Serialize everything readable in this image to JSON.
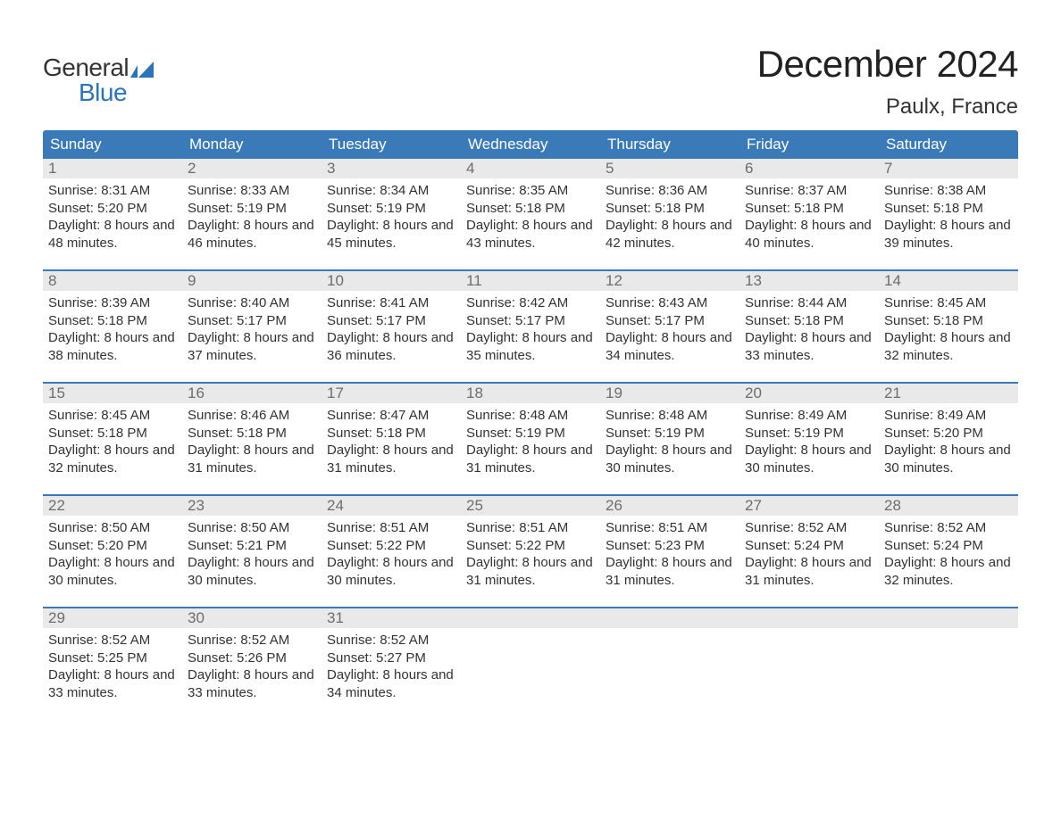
{
  "logo": {
    "line1": "General",
    "line2": "Blue",
    "flag_color": "#2b74b8"
  },
  "title": "December 2024",
  "location": "Paulx, France",
  "colors": {
    "header_bg": "#3a7ab8",
    "header_text": "#ffffff",
    "daynum_bg": "#e9e9e9",
    "daynum_text": "#6d6d6d",
    "body_text": "#333333",
    "rule": "#3a7ab8",
    "page_bg": "#ffffff"
  },
  "typography": {
    "title_fontsize": 42,
    "location_fontsize": 24,
    "header_fontsize": 17,
    "daynum_fontsize": 17,
    "body_fontsize": 15
  },
  "weekday_headers": [
    "Sunday",
    "Monday",
    "Tuesday",
    "Wednesday",
    "Thursday",
    "Friday",
    "Saturday"
  ],
  "weeks": [
    [
      {
        "n": "1",
        "sunrise": "8:31 AM",
        "sunset": "5:20 PM",
        "daylight": "8 hours and 48 minutes."
      },
      {
        "n": "2",
        "sunrise": "8:33 AM",
        "sunset": "5:19 PM",
        "daylight": "8 hours and 46 minutes."
      },
      {
        "n": "3",
        "sunrise": "8:34 AM",
        "sunset": "5:19 PM",
        "daylight": "8 hours and 45 minutes."
      },
      {
        "n": "4",
        "sunrise": "8:35 AM",
        "sunset": "5:18 PM",
        "daylight": "8 hours and 43 minutes."
      },
      {
        "n": "5",
        "sunrise": "8:36 AM",
        "sunset": "5:18 PM",
        "daylight": "8 hours and 42 minutes."
      },
      {
        "n": "6",
        "sunrise": "8:37 AM",
        "sunset": "5:18 PM",
        "daylight": "8 hours and 40 minutes."
      },
      {
        "n": "7",
        "sunrise": "8:38 AM",
        "sunset": "5:18 PM",
        "daylight": "8 hours and 39 minutes."
      }
    ],
    [
      {
        "n": "8",
        "sunrise": "8:39 AM",
        "sunset": "5:18 PM",
        "daylight": "8 hours and 38 minutes."
      },
      {
        "n": "9",
        "sunrise": "8:40 AM",
        "sunset": "5:17 PM",
        "daylight": "8 hours and 37 minutes."
      },
      {
        "n": "10",
        "sunrise": "8:41 AM",
        "sunset": "5:17 PM",
        "daylight": "8 hours and 36 minutes."
      },
      {
        "n": "11",
        "sunrise": "8:42 AM",
        "sunset": "5:17 PM",
        "daylight": "8 hours and 35 minutes."
      },
      {
        "n": "12",
        "sunrise": "8:43 AM",
        "sunset": "5:17 PM",
        "daylight": "8 hours and 34 minutes."
      },
      {
        "n": "13",
        "sunrise": "8:44 AM",
        "sunset": "5:18 PM",
        "daylight": "8 hours and 33 minutes."
      },
      {
        "n": "14",
        "sunrise": "8:45 AM",
        "sunset": "5:18 PM",
        "daylight": "8 hours and 32 minutes."
      }
    ],
    [
      {
        "n": "15",
        "sunrise": "8:45 AM",
        "sunset": "5:18 PM",
        "daylight": "8 hours and 32 minutes."
      },
      {
        "n": "16",
        "sunrise": "8:46 AM",
        "sunset": "5:18 PM",
        "daylight": "8 hours and 31 minutes."
      },
      {
        "n": "17",
        "sunrise": "8:47 AM",
        "sunset": "5:18 PM",
        "daylight": "8 hours and 31 minutes."
      },
      {
        "n": "18",
        "sunrise": "8:48 AM",
        "sunset": "5:19 PM",
        "daylight": "8 hours and 31 minutes."
      },
      {
        "n": "19",
        "sunrise": "8:48 AM",
        "sunset": "5:19 PM",
        "daylight": "8 hours and 30 minutes."
      },
      {
        "n": "20",
        "sunrise": "8:49 AM",
        "sunset": "5:19 PM",
        "daylight": "8 hours and 30 minutes."
      },
      {
        "n": "21",
        "sunrise": "8:49 AM",
        "sunset": "5:20 PM",
        "daylight": "8 hours and 30 minutes."
      }
    ],
    [
      {
        "n": "22",
        "sunrise": "8:50 AM",
        "sunset": "5:20 PM",
        "daylight": "8 hours and 30 minutes."
      },
      {
        "n": "23",
        "sunrise": "8:50 AM",
        "sunset": "5:21 PM",
        "daylight": "8 hours and 30 minutes."
      },
      {
        "n": "24",
        "sunrise": "8:51 AM",
        "sunset": "5:22 PM",
        "daylight": "8 hours and 30 minutes."
      },
      {
        "n": "25",
        "sunrise": "8:51 AM",
        "sunset": "5:22 PM",
        "daylight": "8 hours and 31 minutes."
      },
      {
        "n": "26",
        "sunrise": "8:51 AM",
        "sunset": "5:23 PM",
        "daylight": "8 hours and 31 minutes."
      },
      {
        "n": "27",
        "sunrise": "8:52 AM",
        "sunset": "5:24 PM",
        "daylight": "8 hours and 31 minutes."
      },
      {
        "n": "28",
        "sunrise": "8:52 AM",
        "sunset": "5:24 PM",
        "daylight": "8 hours and 32 minutes."
      }
    ],
    [
      {
        "n": "29",
        "sunrise": "8:52 AM",
        "sunset": "5:25 PM",
        "daylight": "8 hours and 33 minutes."
      },
      {
        "n": "30",
        "sunrise": "8:52 AM",
        "sunset": "5:26 PM",
        "daylight": "8 hours and 33 minutes."
      },
      {
        "n": "31",
        "sunrise": "8:52 AM",
        "sunset": "5:27 PM",
        "daylight": "8 hours and 34 minutes."
      },
      {
        "empty": true
      },
      {
        "empty": true
      },
      {
        "empty": true
      },
      {
        "empty": true
      }
    ]
  ],
  "labels": {
    "sunrise": "Sunrise:",
    "sunset": "Sunset:",
    "daylight": "Daylight:"
  }
}
